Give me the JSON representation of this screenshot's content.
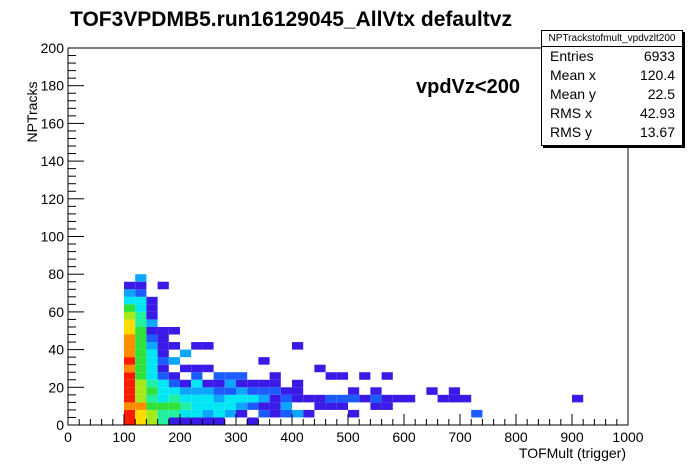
{
  "header": {
    "title": "TOF3VPDMB5.run16129045_AllVtx defaultvz",
    "annotation": "vpdVz<200"
  },
  "stats": {
    "name": "NPTrackstofmult_vpdvzlt200",
    "rows": [
      {
        "label": "Entries",
        "value": "6933"
      },
      {
        "label": "Mean x",
        "value": "120.4"
      },
      {
        "label": "Mean y",
        "value": "22.5"
      },
      {
        "label": "RMS x",
        "value": "42.93"
      },
      {
        "label": "RMS y",
        "value": "13.67"
      }
    ]
  },
  "chart_data": {
    "type": "heatmap",
    "title": "TOF3VPDMB5.run16129045_AllVtx defaultvz",
    "xlabel": "TOFMult (trigger)",
    "ylabel": "NPTracks",
    "xlim": [
      0,
      1000
    ],
    "ylim": [
      0,
      200
    ],
    "xticks": [
      0,
      100,
      200,
      300,
      400,
      500,
      600,
      700,
      800,
      900,
      1000
    ],
    "yticks": [
      0,
      20,
      40,
      60,
      80,
      100,
      120,
      140,
      160,
      180,
      200
    ],
    "bin_width_x": 20,
    "bin_width_y": 4,
    "grid": false,
    "legend": "stats box top-right",
    "colors": {
      "1": "#3a1ae6",
      "2": "#1a5cff",
      "3": "#0aa6ff",
      "4": "#00e6f2",
      "5": "#22f0a0",
      "6": "#2ee23a",
      "7": "#a4ea1a",
      "8": "#ffdc00",
      "9": "#ff8c00",
      "10": "#ff1a00"
    },
    "cells": [
      [
        100,
        0,
        10
      ],
      [
        100,
        4,
        10
      ],
      [
        100,
        8,
        9
      ],
      [
        100,
        12,
        10
      ],
      [
        100,
        16,
        10
      ],
      [
        100,
        20,
        10
      ],
      [
        100,
        24,
        10
      ],
      [
        100,
        28,
        9
      ],
      [
        100,
        32,
        10
      ],
      [
        100,
        36,
        9
      ],
      [
        100,
        40,
        9
      ],
      [
        100,
        44,
        9
      ],
      [
        100,
        48,
        8
      ],
      [
        100,
        52,
        8
      ],
      [
        100,
        56,
        7
      ],
      [
        100,
        60,
        6
      ],
      [
        100,
        64,
        4
      ],
      [
        100,
        68,
        3
      ],
      [
        100,
        72,
        1
      ],
      [
        120,
        0,
        8
      ],
      [
        120,
        4,
        8
      ],
      [
        120,
        8,
        9
      ],
      [
        120,
        12,
        7
      ],
      [
        120,
        16,
        7
      ],
      [
        120,
        20,
        7
      ],
      [
        120,
        24,
        6
      ],
      [
        120,
        28,
        6
      ],
      [
        120,
        32,
        6
      ],
      [
        120,
        36,
        6
      ],
      [
        120,
        40,
        6
      ],
      [
        120,
        44,
        6
      ],
      [
        120,
        48,
        6
      ],
      [
        120,
        52,
        5
      ],
      [
        120,
        56,
        5
      ],
      [
        120,
        60,
        4
      ],
      [
        120,
        64,
        4
      ],
      [
        120,
        68,
        2
      ],
      [
        120,
        72,
        1
      ],
      [
        120,
        76,
        3
      ],
      [
        140,
        0,
        7
      ],
      [
        140,
        4,
        7
      ],
      [
        140,
        8,
        6
      ],
      [
        140,
        12,
        5
      ],
      [
        140,
        16,
        6
      ],
      [
        140,
        20,
        5
      ],
      [
        140,
        24,
        4
      ],
      [
        140,
        28,
        4
      ],
      [
        140,
        32,
        4
      ],
      [
        140,
        36,
        4
      ],
      [
        140,
        40,
        3
      ],
      [
        140,
        44,
        2
      ],
      [
        140,
        48,
        1
      ],
      [
        140,
        52,
        3
      ],
      [
        140,
        56,
        1
      ],
      [
        140,
        60,
        1
      ],
      [
        140,
        64,
        1
      ],
      [
        160,
        0,
        5
      ],
      [
        160,
        4,
        5
      ],
      [
        160,
        8,
        6
      ],
      [
        160,
        12,
        4
      ],
      [
        160,
        16,
        4
      ],
      [
        160,
        20,
        4
      ],
      [
        160,
        24,
        2
      ],
      [
        160,
        28,
        1
      ],
      [
        160,
        32,
        2
      ],
      [
        160,
        36,
        1
      ],
      [
        160,
        40,
        1
      ],
      [
        160,
        44,
        1
      ],
      [
        160,
        48,
        1
      ],
      [
        160,
        72,
        1
      ],
      [
        180,
        0,
        1
      ],
      [
        180,
        4,
        5
      ],
      [
        180,
        8,
        6
      ],
      [
        180,
        12,
        5
      ],
      [
        180,
        16,
        4
      ],
      [
        180,
        20,
        2
      ],
      [
        180,
        24,
        1
      ],
      [
        180,
        32,
        3
      ],
      [
        180,
        40,
        1
      ],
      [
        180,
        48,
        1
      ],
      [
        200,
        0,
        1
      ],
      [
        200,
        4,
        4
      ],
      [
        200,
        8,
        5
      ],
      [
        200,
        12,
        4
      ],
      [
        200,
        16,
        3
      ],
      [
        200,
        20,
        1
      ],
      [
        200,
        28,
        1
      ],
      [
        200,
        36,
        3
      ],
      [
        220,
        0,
        1
      ],
      [
        220,
        4,
        4
      ],
      [
        220,
        8,
        4
      ],
      [
        220,
        12,
        4
      ],
      [
        220,
        16,
        3
      ],
      [
        220,
        20,
        4
      ],
      [
        220,
        24,
        2
      ],
      [
        220,
        28,
        1
      ],
      [
        220,
        40,
        1
      ],
      [
        240,
        0,
        1
      ],
      [
        240,
        4,
        3
      ],
      [
        240,
        8,
        4
      ],
      [
        240,
        12,
        4
      ],
      [
        240,
        16,
        3
      ],
      [
        240,
        20,
        1
      ],
      [
        240,
        28,
        1
      ],
      [
        240,
        40,
        1
      ],
      [
        260,
        0,
        1
      ],
      [
        260,
        4,
        4
      ],
      [
        260,
        8,
        4
      ],
      [
        260,
        12,
        3
      ],
      [
        260,
        16,
        2
      ],
      [
        260,
        20,
        1
      ],
      [
        260,
        24,
        2
      ],
      [
        280,
        4,
        3
      ],
      [
        280,
        8,
        4
      ],
      [
        280,
        12,
        4
      ],
      [
        280,
        16,
        2
      ],
      [
        280,
        20,
        3
      ],
      [
        280,
        24,
        2
      ],
      [
        300,
        4,
        1
      ],
      [
        300,
        8,
        3
      ],
      [
        300,
        12,
        4
      ],
      [
        300,
        16,
        3
      ],
      [
        300,
        20,
        1
      ],
      [
        300,
        24,
        2
      ],
      [
        320,
        0,
        1
      ],
      [
        320,
        8,
        2
      ],
      [
        320,
        12,
        4
      ],
      [
        320,
        16,
        2
      ],
      [
        320,
        20,
        1
      ],
      [
        340,
        4,
        2
      ],
      [
        340,
        8,
        1
      ],
      [
        340,
        12,
        3
      ],
      [
        340,
        16,
        2
      ],
      [
        340,
        20,
        1
      ],
      [
        340,
        32,
        1
      ],
      [
        360,
        4,
        1
      ],
      [
        360,
        8,
        1
      ],
      [
        360,
        12,
        1
      ],
      [
        360,
        16,
        2
      ],
      [
        360,
        20,
        1
      ],
      [
        360,
        24,
        1
      ],
      [
        380,
        4,
        2
      ],
      [
        380,
        8,
        3
      ],
      [
        380,
        12,
        2
      ],
      [
        380,
        16,
        1
      ],
      [
        400,
        4,
        3
      ],
      [
        400,
        12,
        1
      ],
      [
        400,
        16,
        1
      ],
      [
        400,
        20,
        1
      ],
      [
        400,
        40,
        1
      ],
      [
        420,
        4,
        1
      ],
      [
        420,
        12,
        1
      ],
      [
        440,
        8,
        1
      ],
      [
        440,
        12,
        1
      ],
      [
        440,
        28,
        1
      ],
      [
        460,
        8,
        1
      ],
      [
        460,
        12,
        2
      ],
      [
        460,
        24,
        1
      ],
      [
        480,
        8,
        1
      ],
      [
        480,
        12,
        2
      ],
      [
        480,
        24,
        1
      ],
      [
        500,
        4,
        1
      ],
      [
        500,
        12,
        2
      ],
      [
        500,
        16,
        1
      ],
      [
        520,
        12,
        1
      ],
      [
        520,
        24,
        1
      ],
      [
        540,
        8,
        1
      ],
      [
        540,
        12,
        2
      ],
      [
        540,
        16,
        1
      ],
      [
        560,
        8,
        1
      ],
      [
        560,
        12,
        1
      ],
      [
        560,
        24,
        1
      ],
      [
        580,
        12,
        1
      ],
      [
        600,
        12,
        1
      ],
      [
        640,
        16,
        1
      ],
      [
        660,
        12,
        1
      ],
      [
        680,
        12,
        1
      ],
      [
        680,
        16,
        1
      ],
      [
        700,
        12,
        1
      ],
      [
        720,
        4,
        2
      ],
      [
        900,
        12,
        1
      ]
    ]
  }
}
